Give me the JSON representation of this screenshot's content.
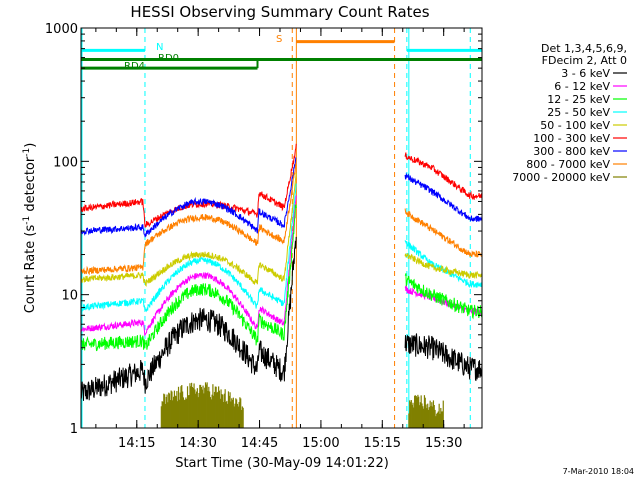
{
  "chart_data": {
    "type": "line",
    "title": "HESSI Observing Summary Count Rates",
    "xlabel": "Start Time (30-May-09 14:01:22)",
    "ylabel": "Count Rate (s",
    "ylabel_exp1": "-1",
    "ylabel_mid": " detector",
    "ylabel_exp2": "-1",
    "ylabel_end": ")",
    "y_scale": "log",
    "ylim": [
      1,
      1000
    ],
    "xlim": [
      "14:01:22",
      "15:39:22"
    ],
    "x_ticks": [
      "14:15",
      "14:30",
      "14:45",
      "15:00",
      "15:15",
      "15:30"
    ],
    "y_ticks": [
      "1",
      "10",
      "100",
      "1000"
    ],
    "footer": "7-Mar-2010 18:04",
    "legend": {
      "header": [
        "Det 1,3,4,5,6,9,",
        "FDecim 2, Att 0"
      ]
    },
    "annotations": {
      "N": "N",
      "RD0": "RD0",
      "RD4": "RD4",
      "S": "S"
    },
    "flag_bars": [
      {
        "label": "N",
        "color": "#00ffff",
        "value": 680,
        "segments": [
          [
            "14:01:22",
            "14:17:00"
          ],
          [
            "15:21:00",
            "15:39:22"
          ]
        ]
      },
      {
        "label": "RD0",
        "color": "#008000",
        "value": 580,
        "segments": [
          [
            "14:01:22",
            "15:39:22"
          ]
        ]
      },
      {
        "label": "RD4",
        "color": "#008000",
        "value": 500,
        "segments": [
          [
            "14:01:22",
            "14:44:30"
          ]
        ]
      },
      {
        "label": "S",
        "color": "#ff8000",
        "value": 790,
        "segments": [
          [
            "14:54:00",
            "15:18:00"
          ]
        ]
      }
    ],
    "vertical_markers": [
      {
        "time": "14:17:00",
        "color": "#00ffff"
      },
      {
        "time": "15:21:00",
        "color": "#00ffff"
      },
      {
        "time": "15:36:30",
        "color": "#00ffff"
      },
      {
        "time": "15:18:00",
        "color": "#ff8000"
      },
      {
        "time": "14:53:00",
        "color": "#ff8000"
      }
    ],
    "data_gap": [
      "14:54:00",
      "15:20:30"
    ],
    "series": [
      {
        "name": "3 - 6 keV",
        "color": "#000000",
        "x": [
          "14:01:22",
          "14:16:30",
          "14:17:00",
          "14:31:00",
          "14:44:30",
          "14:44:50",
          "14:51:00",
          "14:53:00",
          "15:20:30",
          "15:27:00",
          "15:36:30"
        ],
        "values": [
          1.8,
          2.7,
          2.2,
          6.5,
          2.7,
          3.8,
          2.6,
          30,
          4.3,
          4.0,
          2.8
        ]
      },
      {
        "name": "6 - 12 keV",
        "color": "#ff00ff",
        "x": [
          "14:01:22",
          "14:16:30",
          "14:17:00",
          "14:31:00",
          "14:44:30",
          "14:44:50",
          "14:51:00",
          "14:53:00",
          "15:20:30",
          "15:27:00",
          "15:36:30"
        ],
        "values": [
          5.5,
          6.2,
          5.2,
          14,
          5.5,
          8.0,
          6.0,
          60,
          11,
          9.5,
          7.5
        ]
      },
      {
        "name": "12 - 25 keV",
        "color": "#00ff00",
        "x": [
          "14:01:22",
          "14:16:30",
          "14:17:00",
          "14:31:00",
          "14:44:30",
          "14:44:50",
          "14:51:00",
          "14:53:00",
          "15:20:30",
          "15:27:00",
          "15:36:30"
        ],
        "values": [
          4.2,
          4.5,
          4.0,
          11,
          4.5,
          6.5,
          5.0,
          50,
          13,
          10,
          7.5
        ]
      },
      {
        "name": "25 - 50 keV",
        "color": "#00ffff",
        "x": [
          "14:01:22",
          "14:16:30",
          "14:17:00",
          "14:31:00",
          "14:44:30",
          "14:44:50",
          "14:51:00",
          "14:53:00",
          "15:20:30",
          "15:27:00",
          "15:36:30"
        ],
        "values": [
          8.0,
          9.0,
          7.5,
          18,
          8.0,
          11,
          8.5,
          70,
          25,
          17,
          12
        ]
      },
      {
        "name": "50 - 100 keV",
        "color": "#cccc00",
        "x": [
          "14:01:22",
          "14:16:30",
          "14:17:00",
          "14:31:00",
          "14:44:30",
          "14:44:50",
          "14:51:00",
          "14:53:00",
          "15:20:30",
          "15:27:00",
          "15:36:30"
        ],
        "values": [
          13,
          14,
          12,
          20,
          12,
          17,
          13,
          80,
          20,
          16,
          14
        ]
      },
      {
        "name": "100 - 300 keV",
        "color": "#ff0000",
        "x": [
          "14:01:22",
          "14:16:30",
          "14:17:00",
          "14:31:00",
          "14:44:30",
          "14:44:50",
          "14:51:00",
          "14:53:00",
          "15:20:30",
          "15:27:00",
          "15:36:30"
        ],
        "values": [
          44,
          50,
          33,
          48,
          40,
          58,
          45,
          130,
          110,
          90,
          55
        ]
      },
      {
        "name": "300 - 800 keV",
        "color": "#0000ff",
        "x": [
          "14:01:22",
          "14:16:30",
          "14:17:00",
          "14:31:00",
          "14:44:30",
          "14:44:50",
          "14:51:00",
          "14:53:00",
          "15:20:30",
          "15:27:00",
          "15:36:30"
        ],
        "values": [
          30,
          32,
          28,
          50,
          30,
          42,
          33,
          110,
          78,
          60,
          37
        ]
      },
      {
        "name": "800 - 7000 keV",
        "color": "#ff8000",
        "x": [
          "14:01:22",
          "14:16:30",
          "14:17:00",
          "14:31:00",
          "14:44:30",
          "14:44:50",
          "14:51:00",
          "14:53:00",
          "15:20:30",
          "15:27:00",
          "15:36:30"
        ],
        "values": [
          15,
          16,
          24,
          38,
          24,
          32,
          25,
          100,
          42,
          31,
          20
        ]
      },
      {
        "name": "7000 - 20000 keV",
        "color": "#808000",
        "x": [
          "14:22:00",
          "14:25:00",
          "14:28:00",
          "14:31:00",
          "14:34:00",
          "14:37:00",
          "14:40:00",
          "15:22:00",
          "15:25:00",
          "15:28:00"
        ],
        "values": [
          1.6,
          1.8,
          1.9,
          2.0,
          1.9,
          1.7,
          1.5,
          1.5,
          1.6,
          1.4
        ]
      }
    ]
  }
}
